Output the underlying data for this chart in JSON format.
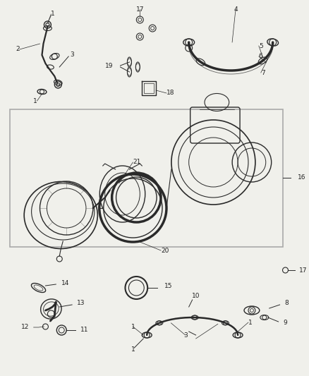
{
  "bg_color": "#f0f0eb",
  "fig_width": 4.38,
  "fig_height": 5.33,
  "dpi": 100,
  "lc": "#2a2a2a",
  "tc": "#222222",
  "fs": 6.5
}
